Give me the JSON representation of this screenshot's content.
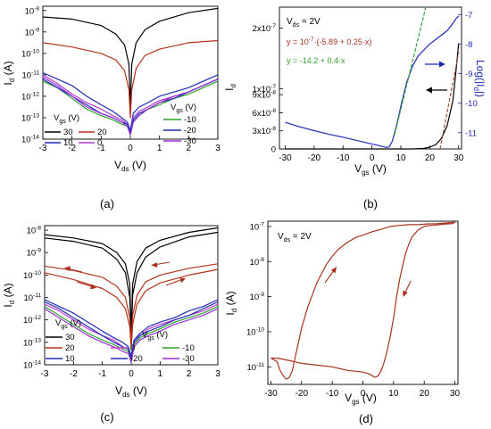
{
  "panel_labels": [
    "(a)",
    "(b)",
    "(c)",
    "(d)"
  ],
  "chart_data": [
    {
      "panel": "(a)",
      "type": "line",
      "xlabel": "V",
      "xlabel_sub": "ds",
      "xlabel_unit": " (V)",
      "ylabel": "I",
      "ylabel_sub": "d",
      "ylabel_unit": " (A)",
      "xlim": [
        -3,
        3
      ],
      "ylim_log10": [
        -14,
        -7.8
      ],
      "yscale": "log",
      "xticks": [
        "-3",
        "-2",
        "-1",
        "0",
        "1",
        "2",
        "3"
      ],
      "ytick_exps": [
        "-8",
        "-9",
        "-10",
        "-11",
        "-12",
        "-13",
        "-14"
      ],
      "legend": [
        {
          "group": "V",
          "group_sub": "gs",
          "unit": " (V)",
          "entries": [
            {
              "label": "30",
              "color": "#000000"
            },
            {
              "label": "20",
              "color": "#b5331c"
            },
            {
              "label": "10",
              "color": "#1f2bb5"
            },
            {
              "label": "0",
              "color": "#b03cc8"
            }
          ]
        },
        {
          "group": "V",
          "group_sub": "gs",
          "unit": " (V)",
          "entries": [
            {
              "label": "-10",
              "color": "#2ea12e"
            },
            {
              "label": "-20",
              "color": "#1f2bb5"
            },
            {
              "label": "-30",
              "color": "#9a2fd6"
            }
          ]
        }
      ],
      "series": [
        {
          "color": "#000000",
          "x": [
            -3,
            -2,
            -1,
            -0.5,
            -0.2,
            -0.05,
            0,
            0.05,
            0.2,
            0.5,
            1,
            2,
            3
          ],
          "y": [
            -8.3,
            -8.4,
            -8.7,
            -9.1,
            -9.6,
            -10.5,
            -12.5,
            -10.5,
            -9.5,
            -8.9,
            -8.5,
            -8.1,
            -7.9
          ]
        },
        {
          "color": "#b5331c",
          "x": [
            -3,
            -2,
            -1,
            -0.5,
            -0.2,
            -0.05,
            0,
            0.05,
            0.2,
            0.5,
            1,
            2,
            3
          ],
          "y": [
            -9.5,
            -9.7,
            -10.0,
            -10.3,
            -10.8,
            -11.7,
            -13.0,
            -11.7,
            -10.7,
            -10.1,
            -9.8,
            -9.5,
            -9.4
          ]
        },
        {
          "color": "#1f2bb5",
          "x": [
            -3,
            -2.5,
            -2,
            -1.5,
            -1,
            -0.6,
            -0.3,
            -0.1,
            0,
            0.1,
            0.3,
            0.6,
            1,
            1.5,
            2,
            2.5,
            3
          ],
          "y": [
            -10.9,
            -11.2,
            -11.5,
            -12.0,
            -12.4,
            -12.7,
            -13.0,
            -13.2,
            -13.6,
            -12.8,
            -12.5,
            -12.3,
            -12.0,
            -11.8,
            -11.6,
            -11.3,
            -11.0
          ]
        },
        {
          "color": "#b03cc8",
          "x": [
            -3,
            -2.5,
            -2,
            -1.5,
            -1,
            -0.6,
            -0.3,
            -0.1,
            0,
            0.1,
            0.3,
            0.6,
            1,
            1.5,
            2,
            2.5,
            3
          ],
          "y": [
            -11.0,
            -11.4,
            -11.9,
            -12.3,
            -12.6,
            -12.9,
            -13.1,
            -13.3,
            -13.7,
            -13.0,
            -12.7,
            -12.5,
            -12.2,
            -12.0,
            -11.8,
            -11.5,
            -11.2
          ]
        },
        {
          "color": "#2ea12e",
          "x": [
            -3,
            -2.5,
            -2,
            -1.5,
            -1,
            -0.6,
            -0.3,
            -0.1,
            0,
            0.1,
            0.3,
            0.6,
            1,
            1.5,
            2,
            2.5,
            3
          ],
          "y": [
            -11.3,
            -11.6,
            -12.1,
            -12.6,
            -12.9,
            -13.1,
            -13.3,
            -13.4,
            -13.8,
            -13.2,
            -12.9,
            -12.6,
            -12.4,
            -12.1,
            -11.9,
            -11.6,
            -11.3
          ]
        },
        {
          "color": "#1f2bb5",
          "x": [
            -3,
            -2.5,
            -2,
            -1.5,
            -1,
            -0.6,
            -0.3,
            -0.1,
            0,
            0.1,
            0.3,
            0.6,
            1,
            1.5,
            2,
            2.5,
            3
          ],
          "y": [
            -11.2,
            -11.6,
            -12.0,
            -12.4,
            -12.8,
            -13.0,
            -13.2,
            -13.3,
            -13.7,
            -13.1,
            -12.8,
            -12.6,
            -12.3,
            -12.1,
            -11.8,
            -11.5,
            -11.2
          ]
        },
        {
          "color": "#9a2fd6",
          "x": [
            -3,
            -2.5,
            -2,
            -1.5,
            -1,
            -0.6,
            -0.3,
            -0.1,
            0,
            0.1,
            0.3,
            0.6,
            1,
            1.5,
            2,
            2.5,
            3
          ],
          "y": [
            -11.1,
            -11.5,
            -12.0,
            -12.5,
            -12.8,
            -13.0,
            -13.2,
            -13.4,
            -13.8,
            -13.2,
            -12.9,
            -12.6,
            -12.3,
            -12.0,
            -11.8,
            -11.5,
            -11.2
          ]
        }
      ]
    },
    {
      "panel": "(b)",
      "type": "line",
      "xlabel": "V",
      "xlabel_sub": "gs",
      "xlabel_unit": " (V)",
      "ylabel": "I",
      "ylabel_sub": "d",
      "y2label": "Log(|I",
      "y2label_sub": "d",
      "y2label_end": "|)",
      "xlim": [
        -32,
        31
      ],
      "ylim": [
        0,
        2.35e-07
      ],
      "y2lim": [
        -11.55,
        -6.75
      ],
      "xticks": [
        "-30",
        "-20",
        "-10",
        "0",
        "10",
        "20",
        "30"
      ],
      "yticks": [
        {
          "mant": "0",
          "exp": ""
        },
        {
          "mant": "3x10",
          "exp": "-8"
        },
        {
          "mant": "6x10",
          "exp": "-8"
        },
        {
          "mant": "9x10",
          "exp": "-8"
        },
        {
          "mant": "1x10",
          "exp": "-7"
        },
        {
          "mant": "2x10",
          "exp": "-7"
        }
      ],
      "y2ticks": [
        "-7",
        "-8",
        "-9",
        "-10",
        "-11"
      ],
      "annotations": [
        "V",
        "ds",
        " = 2V"
      ],
      "fit_red": [
        "y = 10",
        "-7",
        "·(-5.89 + 0.25·x)"
      ],
      "fit_green": "y = -14.2 + 0.4·x",
      "series": [
        {
          "axis": "y2",
          "color": "#1f2bb5",
          "x": [
            -30,
            -25,
            -20,
            -15,
            -10,
            -5,
            0,
            3,
            5,
            6,
            7,
            8,
            9,
            10,
            12,
            14,
            16,
            18,
            20,
            22,
            24,
            26,
            28,
            29,
            30
          ],
          "y": [
            -10.65,
            -10.8,
            -10.93,
            -11.05,
            -11.15,
            -11.27,
            -11.38,
            -11.45,
            -11.5,
            -11.48,
            -11.3,
            -10.95,
            -10.55,
            -10.1,
            -9.3,
            -8.75,
            -8.4,
            -8.2,
            -8.0,
            -7.85,
            -7.7,
            -7.55,
            -7.3,
            -7.15,
            -7.05
          ]
        },
        {
          "axis": "y1",
          "color": "#000000",
          "x": [
            -30,
            -20,
            -10,
            0,
            10,
            14,
            18,
            20,
            22,
            24,
            26,
            28,
            29,
            30
          ],
          "y": [
            0,
            0,
            0,
            0,
            0,
            0,
            1e-09,
            3e-09,
            7e-09,
            1.7e-08,
            3.8e-08,
            8e-08,
            1.25e-07,
            1.75e-07
          ]
        },
        {
          "axis": "y2",
          "color": "#2ea12e",
          "dashed": true,
          "x": [
            7.8,
            18.8
          ],
          "y": [
            -11.08,
            -6.68
          ]
        },
        {
          "axis": "y1",
          "color": "#a0522d",
          "dashed": true,
          "x": [
            23.6,
            30.0
          ],
          "y": [
            0.0,
            1.6e-07
          ]
        }
      ]
    },
    {
      "panel": "(c)",
      "type": "line",
      "xlabel": "V",
      "xlabel_sub": "ds",
      "xlabel_unit": " (V)",
      "ylabel": "I",
      "ylabel_sub": "d",
      "ylabel_unit": " (A)",
      "xlim": [
        -3,
        3
      ],
      "ylim_log10": [
        -14,
        -7.8
      ],
      "yscale": "log",
      "xticks": [
        "-3",
        "-2",
        "-1",
        "0",
        "1",
        "2",
        "3"
      ],
      "ytick_exps": [
        "-8",
        "-9",
        "-10",
        "-11",
        "-12",
        "-13",
        "-14"
      ],
      "legend": [
        {
          "group": "V",
          "group_sub": "gs",
          "unit": " (V)",
          "entries": [
            {
              "label": "30",
              "color": "#000000"
            },
            {
              "label": "20",
              "color": "#b5331c"
            },
            {
              "label": "10",
              "color": "#1f2bb5"
            }
          ]
        },
        {
          "group": "V",
          "group_sub": "gs",
          "unit": " (V)",
          "entries": [
            {
              "label": "0",
              "color": "#c83fcb"
            },
            {
              "label": "-10",
              "color": "#2ea12e"
            },
            {
              "label": "-20",
              "color": "#1f2bb5"
            },
            {
              "label": "-30",
              "color": "#9a2fd6"
            }
          ]
        }
      ],
      "series": [
        {
          "color": "#000000",
          "x": [
            -3,
            -2,
            -1,
            -0.5,
            -0.2,
            -0.05,
            0,
            0.05,
            0.2,
            0.5,
            1,
            2,
            3
          ],
          "y": [
            -8.2,
            -8.35,
            -8.6,
            -9.0,
            -9.5,
            -10.4,
            -12.6,
            -10.4,
            -9.4,
            -8.8,
            -8.45,
            -8.1,
            -7.9
          ]
        },
        {
          "color": "#000000",
          "x": [
            -3,
            -2,
            -1,
            -0.5,
            -0.2,
            -0.05,
            0,
            0.05,
            0.2,
            0.5,
            1,
            2,
            3
          ],
          "y": [
            -8.35,
            -8.5,
            -8.8,
            -9.3,
            -9.9,
            -11.0,
            -12.9,
            -10.9,
            -9.9,
            -9.2,
            -8.75,
            -8.3,
            -8.1
          ]
        },
        {
          "color": "#b5331c",
          "x": [
            -3,
            -2,
            -1,
            -0.5,
            -0.2,
            -0.05,
            0,
            0.05,
            0.2,
            0.5,
            1,
            2,
            3
          ],
          "y": [
            -9.6,
            -9.8,
            -10.1,
            -10.5,
            -11.0,
            -11.9,
            -13.1,
            -11.8,
            -10.9,
            -10.3,
            -10.0,
            -9.7,
            -9.5
          ]
        },
        {
          "color": "#b5331c",
          "x": [
            -3,
            -2,
            -1,
            -0.5,
            -0.2,
            -0.05,
            0,
            0.05,
            0.2,
            0.5,
            1,
            2,
            3
          ],
          "y": [
            -9.9,
            -10.2,
            -10.6,
            -11.0,
            -11.5,
            -12.3,
            -13.3,
            -12.2,
            -11.3,
            -10.7,
            -10.35,
            -10.0,
            -9.75
          ]
        },
        {
          "color": "#1f2bb5",
          "x": [
            -3,
            -2.5,
            -2,
            -1.5,
            -1,
            -0.6,
            -0.3,
            -0.1,
            0,
            0.1,
            0.3,
            0.6,
            1,
            1.5,
            2,
            2.5,
            3
          ],
          "y": [
            -11.1,
            -11.4,
            -11.7,
            -12.1,
            -12.5,
            -12.8,
            -13.0,
            -13.2,
            -13.6,
            -12.9,
            -12.6,
            -12.3,
            -12.1,
            -11.9,
            -11.6,
            -11.4,
            -11.1
          ]
        },
        {
          "color": "#c83fcb",
          "x": [
            -3,
            -2.5,
            -2,
            -1.5,
            -1,
            -0.6,
            -0.3,
            -0.1,
            0,
            0.1,
            0.3,
            0.6,
            1,
            1.5,
            2,
            2.5,
            3
          ],
          "y": [
            -11.3,
            -11.6,
            -12.0,
            -12.4,
            -12.7,
            -12.9,
            -13.2,
            -13.3,
            -13.7,
            -13.0,
            -12.7,
            -12.4,
            -12.2,
            -12.0,
            -11.8,
            -11.6,
            -11.3
          ]
        },
        {
          "color": "#2ea12e",
          "x": [
            -3,
            -2.5,
            -2,
            -1.5,
            -1,
            -0.6,
            -0.3,
            -0.1,
            0,
            0.1,
            0.3,
            0.6,
            1,
            1.5,
            2,
            2.5,
            3
          ],
          "y": [
            -11.4,
            -11.8,
            -12.2,
            -12.6,
            -12.9,
            -13.1,
            -13.3,
            -13.4,
            -13.8,
            -13.1,
            -12.8,
            -12.6,
            -12.4,
            -12.1,
            -11.9,
            -11.7,
            -11.4
          ]
        },
        {
          "color": "#1f2bb5",
          "x": [
            -3,
            -2.5,
            -2,
            -1.5,
            -1,
            -0.6,
            -0.3,
            -0.1,
            0,
            0.1,
            0.3,
            0.6,
            1,
            1.5,
            2,
            2.5,
            3
          ],
          "y": [
            -11.2,
            -11.5,
            -11.9,
            -12.3,
            -12.7,
            -13.0,
            -13.2,
            -13.3,
            -13.7,
            -13.0,
            -12.7,
            -12.5,
            -12.3,
            -12.0,
            -11.8,
            -11.5,
            -11.2
          ]
        },
        {
          "color": "#9a2fd6",
          "x": [
            -3,
            -2.5,
            -2,
            -1.5,
            -1,
            -0.6,
            -0.3,
            -0.1,
            0,
            0.1,
            0.3,
            0.6,
            1,
            1.5,
            2,
            2.5,
            3
          ],
          "y": [
            -11.5,
            -11.9,
            -12.3,
            -12.7,
            -13.0,
            -13.2,
            -13.4,
            -13.5,
            -13.9,
            -13.2,
            -12.9,
            -12.7,
            -12.5,
            -12.2,
            -12.0,
            -11.8,
            -11.5
          ]
        }
      ]
    },
    {
      "panel": "(d)",
      "type": "line",
      "xlabel": "V",
      "xlabel_sub": "gs",
      "xlabel_unit": " (V)",
      "ylabel": "I",
      "ylabel_sub": "d",
      "ylabel_unit": " (A)",
      "xlim": [
        -31,
        31
      ],
      "ylim_log10": [
        -11.5,
        -6.85
      ],
      "yscale": "log",
      "xticks": [
        "-30",
        "-20",
        "-10",
        "0",
        "10",
        "20",
        "30"
      ],
      "ytick_exps": [
        "-7",
        "-8",
        "-9",
        "-10",
        "-11"
      ],
      "annotations": [
        "V",
        "ds",
        " = 2V"
      ],
      "series": [
        {
          "color": "#a8321e",
          "x": [
            -30,
            -28,
            -27,
            -26,
            -25,
            -24,
            -23,
            -22,
            -20,
            -18,
            -15,
            -12,
            -10,
            -8,
            -5,
            -2,
            0,
            3,
            6,
            9,
            12,
            15,
            18,
            21,
            24,
            27,
            30,
            29,
            27,
            25,
            22,
            20,
            18,
            16,
            15,
            14,
            13,
            12,
            11,
            10,
            9,
            8,
            7,
            6,
            5,
            4,
            3,
            2,
            0,
            -5,
            -10,
            -15,
            -20,
            -25,
            -28,
            -30
          ],
          "y": [
            -10.75,
            -10.85,
            -11.1,
            -11.25,
            -11.35,
            -11.3,
            -11.1,
            -10.7,
            -9.9,
            -9.3,
            -8.6,
            -8.1,
            -7.85,
            -7.65,
            -7.45,
            -7.3,
            -7.25,
            -7.15,
            -7.08,
            -7.0,
            -6.97,
            -6.95,
            -6.95,
            -6.93,
            -6.92,
            -6.9,
            -6.88,
            -6.92,
            -6.93,
            -6.95,
            -6.97,
            -7.0,
            -7.1,
            -7.3,
            -7.5,
            -7.75,
            -8.1,
            -8.5,
            -9.0,
            -9.6,
            -10.1,
            -10.5,
            -10.85,
            -11.1,
            -11.25,
            -11.3,
            -11.25,
            -11.2,
            -11.15,
            -11.1,
            -11.0,
            -10.95,
            -10.9,
            -10.8,
            -10.75,
            -10.75
          ]
        }
      ]
    }
  ]
}
